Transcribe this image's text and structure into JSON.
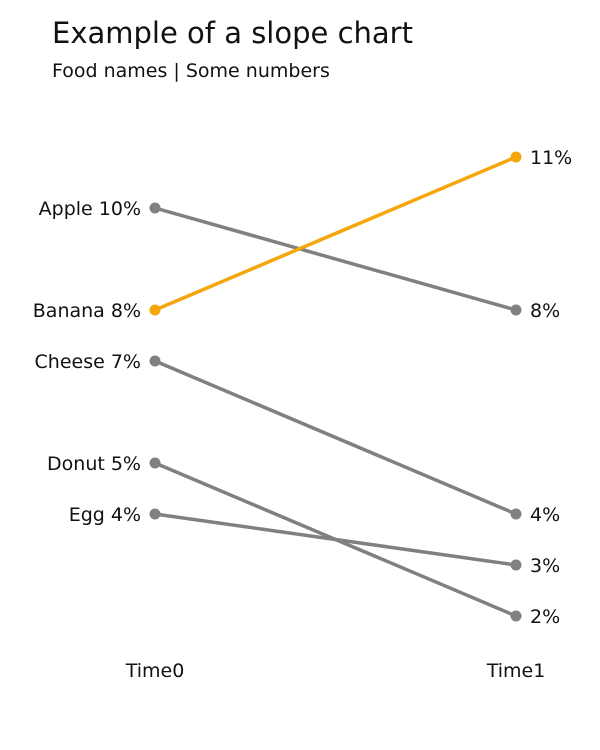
{
  "chart_data": {
    "type": "line",
    "title": "Example of a slope chart",
    "subtitle": "Food names | Some numbers",
    "categories": [
      "Time0",
      "Time1"
    ],
    "ylim": [
      1,
      12
    ],
    "grid": false,
    "colors": {
      "highlight": "#f5a60a",
      "default": "#808080"
    },
    "series": [
      {
        "name": "Apple",
        "values": [
          10,
          8
        ],
        "highlight": false
      },
      {
        "name": "Banana",
        "values": [
          8,
          11
        ],
        "highlight": true
      },
      {
        "name": "Cheese",
        "values": [
          7,
          4
        ],
        "highlight": false
      },
      {
        "name": "Donut",
        "values": [
          5,
          2
        ],
        "highlight": false
      },
      {
        "name": "Egg",
        "values": [
          4,
          3
        ],
        "highlight": false
      }
    ],
    "left_labels": [
      "Apple 10%",
      "Banana 8%",
      "Cheese 7%",
      "Donut 5%",
      "Egg 4%"
    ],
    "right_labels": [
      "8%",
      "11%",
      "4%",
      "2%",
      "3%"
    ]
  }
}
